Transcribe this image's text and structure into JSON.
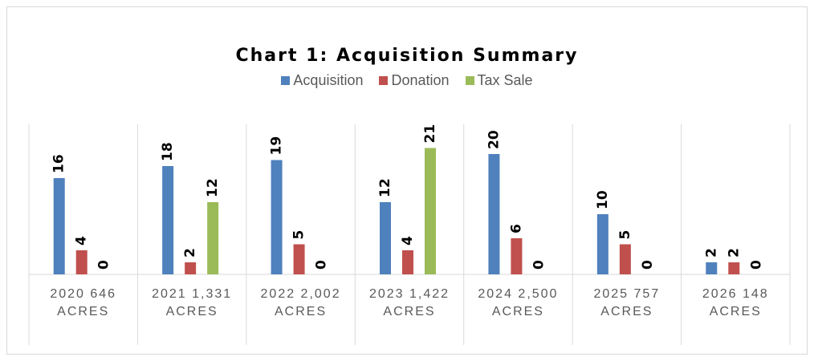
{
  "chart_data": {
    "type": "bar",
    "title": "Chart 1: Acquisition Summary",
    "categories": [
      "2020 646 ACRES",
      "2021 1,331 ACRES",
      "2022 2,002 ACRES",
      "2023 1,422 ACRES",
      "2024 2,500 ACRES",
      "2025 757 ACRES",
      "2026 148 ACRES"
    ],
    "series": [
      {
        "name": "Acquisition",
        "color": "#4f81bd",
        "values": [
          16,
          18,
          19,
          12,
          20,
          10,
          2
        ]
      },
      {
        "name": "Donation",
        "color": "#c0504d",
        "values": [
          4,
          2,
          5,
          4,
          6,
          5,
          2
        ]
      },
      {
        "name": "Tax Sale",
        "color": "#9bbb59",
        "values": [
          0,
          12,
          0,
          21,
          0,
          0,
          0
        ]
      }
    ],
    "legend": "top",
    "grid": true
  }
}
